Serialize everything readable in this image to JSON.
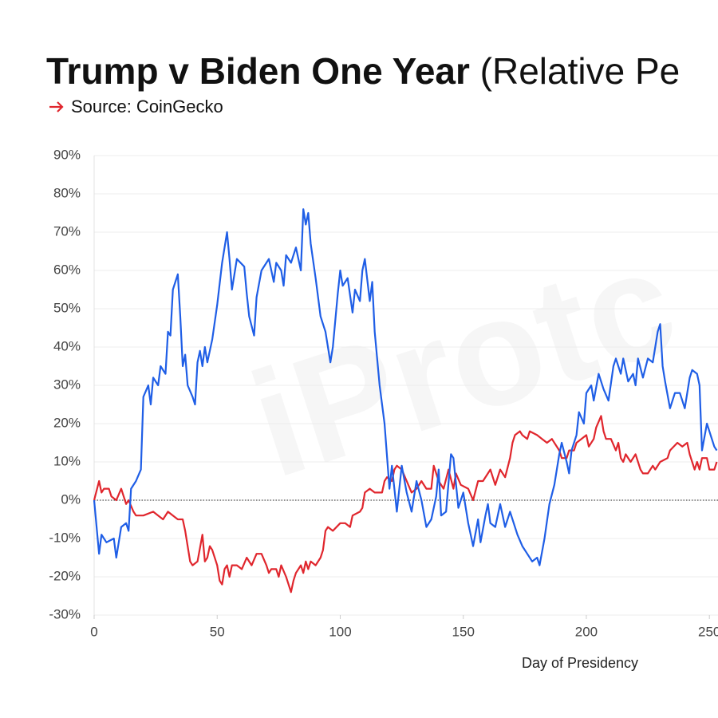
{
  "chart_data": {
    "type": "line",
    "title": "Trump v Biden One Year",
    "title_note": "(Relative Pe",
    "source": "Source: CoinGecko",
    "watermark": "iProtc",
    "x_label": "Day of Presidency",
    "xlim": [
      0,
      253.5
    ],
    "xticks": [
      0,
      50,
      100,
      150,
      200,
      250
    ],
    "ylim": [
      -30,
      90
    ],
    "yticks": [
      {
        "value": 90,
        "label": "90%"
      },
      {
        "value": 80,
        "label": "80%"
      },
      {
        "value": 70,
        "label": "70%"
      },
      {
        "value": 60,
        "label": "60%"
      },
      {
        "value": 50,
        "label": "50%"
      },
      {
        "value": 40,
        "label": "40%"
      },
      {
        "value": 30,
        "label": "30%"
      },
      {
        "value": 20,
        "label": "20%"
      },
      {
        "value": 10,
        "label": "10%"
      },
      {
        "value": 0,
        "label": "0%"
      },
      {
        "value": -10,
        "label": "-10%"
      },
      {
        "value": -20,
        "label": "-20%"
      },
      {
        "value": -30,
        "label": "-30%"
      }
    ],
    "grid": true,
    "series": [
      {
        "color": "#1f5ee6",
        "x": [
          0,
          2,
          3,
          5,
          8,
          9,
          11,
          13,
          14,
          15,
          17,
          19,
          20,
          22,
          23,
          24,
          26,
          27,
          29,
          30,
          31,
          32,
          34,
          35,
          36,
          37,
          38,
          40,
          41,
          42,
          43,
          44,
          45,
          46,
          48,
          50,
          52,
          54,
          55,
          56,
          57,
          58,
          61,
          62,
          63,
          65,
          66,
          68,
          71,
          73,
          74,
          76,
          77,
          78,
          80,
          82,
          84,
          85,
          86,
          87,
          88,
          90,
          92,
          94,
          96,
          97,
          99,
          100,
          101,
          103,
          105,
          106,
          108,
          109,
          110,
          112,
          113,
          114,
          116,
          118,
          120,
          121,
          123,
          125,
          127,
          129,
          131,
          133,
          135,
          137,
          139,
          140,
          141,
          143,
          145,
          146,
          148,
          150,
          152,
          154,
          156,
          157,
          159,
          160,
          161,
          163,
          165,
          167,
          169,
          172,
          174,
          176,
          178,
          180,
          181,
          183,
          185,
          187,
          189,
          190,
          192,
          193,
          194,
          196,
          197,
          199,
          200,
          202,
          203,
          205,
          207,
          209,
          211,
          212,
          214,
          215,
          217,
          219,
          220,
          221,
          223,
          225,
          227,
          229,
          230,
          231,
          232,
          234,
          236,
          238,
          240,
          242,
          243,
          245,
          246,
          247,
          249,
          250,
          252,
          253
        ],
        "values": [
          0,
          -14,
          -9,
          -11,
          -10,
          -15,
          -7,
          -6,
          -8,
          3,
          5,
          8,
          27,
          30,
          25,
          32,
          30,
          35,
          33,
          44,
          43,
          55,
          59,
          48,
          35,
          38,
          30,
          27,
          25,
          36,
          39,
          35,
          40,
          36,
          42,
          51,
          62,
          70,
          63,
          55,
          59,
          63,
          61,
          54,
          48,
          43,
          53,
          60,
          63,
          57,
          62,
          60,
          56,
          64,
          62,
          66,
          60,
          76,
          72,
          75,
          67,
          58,
          48,
          44,
          36,
          40,
          54,
          60,
          56,
          58,
          49,
          55,
          52,
          60,
          63,
          52,
          57,
          44,
          30,
          20,
          3,
          9,
          -3,
          9,
          2,
          -3,
          5,
          0,
          -7,
          -5,
          1,
          8,
          -4,
          -3,
          12,
          11,
          -2,
          2,
          -6,
          -12,
          -5,
          -11,
          -4,
          -1,
          -6,
          -7,
          -1,
          -7,
          -3,
          -9,
          -12,
          -14,
          -16,
          -15,
          -17,
          -10,
          -1,
          4,
          12,
          15,
          10,
          7,
          13,
          17,
          23,
          20,
          28,
          30,
          26,
          33,
          29,
          26,
          35,
          37,
          33,
          37,
          31,
          33,
          30,
          37,
          32,
          37,
          36,
          44,
          46,
          35,
          31,
          24,
          28,
          28,
          24,
          32,
          34,
          33,
          30,
          13,
          20,
          18,
          14,
          13
        ]
      },
      {
        "color": "#e0262d",
        "x": [
          0,
          2,
          3,
          4,
          6,
          7,
          9,
          11,
          13,
          14,
          16,
          17,
          20,
          24,
          26,
          28,
          30,
          32,
          34,
          36,
          37,
          38,
          39,
          40,
          42,
          44,
          45,
          46,
          47,
          48,
          50,
          51,
          52,
          53,
          54,
          55,
          56,
          58,
          60,
          62,
          64,
          66,
          68,
          70,
          71,
          72,
          74,
          75,
          76,
          78,
          79,
          80,
          81,
          82,
          84,
          85,
          86,
          87,
          88,
          90,
          92,
          93,
          94,
          95,
          97,
          100,
          102,
          104,
          105,
          108,
          109,
          110,
          112,
          114,
          117,
          118,
          119,
          121,
          122,
          123,
          125,
          127,
          129,
          131,
          133,
          135,
          137,
          138,
          140,
          142,
          144,
          146,
          147,
          149,
          152,
          154,
          156,
          158,
          161,
          163,
          165,
          167,
          169,
          170,
          171,
          173,
          174,
          176,
          177,
          180,
          182,
          184,
          186,
          189,
          190,
          192,
          193,
          195,
          196,
          198,
          200,
          201,
          203,
          204,
          206,
          207,
          208,
          210,
          212,
          213,
          214,
          215,
          216,
          218,
          220,
          222,
          223,
          225,
          227,
          228,
          230,
          233,
          234,
          237,
          239,
          241,
          242,
          243,
          244,
          245,
          246,
          247,
          249,
          250,
          252,
          253
        ],
        "values": [
          0,
          5,
          2,
          3,
          3,
          1,
          0,
          3,
          -1,
          0,
          -3,
          -4,
          -4,
          -3,
          -4,
          -5,
          -3,
          -4,
          -5,
          -5,
          -8,
          -12,
          -16,
          -17,
          -16,
          -9,
          -16,
          -15,
          -12,
          -13,
          -17,
          -21,
          -22,
          -18,
          -17,
          -20,
          -17,
          -17,
          -18,
          -15,
          -17,
          -14,
          -14,
          -17,
          -19,
          -18,
          -18,
          -20,
          -17,
          -20,
          -22,
          -24,
          -21,
          -19,
          -17,
          -19,
          -16,
          -18,
          -16,
          -17,
          -15,
          -13,
          -8,
          -7,
          -8,
          -6,
          -6,
          -7,
          -4,
          -3,
          -2,
          2,
          3,
          2,
          2,
          5,
          6,
          5,
          8,
          9,
          8,
          5,
          2,
          3,
          5,
          3,
          3,
          9,
          5,
          3,
          8,
          3,
          7,
          4,
          3,
          0,
          5,
          5,
          8,
          4,
          8,
          6,
          11,
          15,
          17,
          18,
          17,
          16,
          18,
          17,
          16,
          15,
          16,
          13,
          11,
          11,
          13,
          13,
          15,
          16,
          17,
          14,
          16,
          19,
          22,
          18,
          16,
          16,
          13,
          15,
          11,
          10,
          12,
          10,
          12,
          8,
          7,
          7,
          9,
          8,
          10,
          11,
          13,
          15,
          14,
          15,
          12,
          10,
          8,
          10,
          8,
          11,
          11,
          8,
          8,
          10
        ]
      }
    ]
  }
}
